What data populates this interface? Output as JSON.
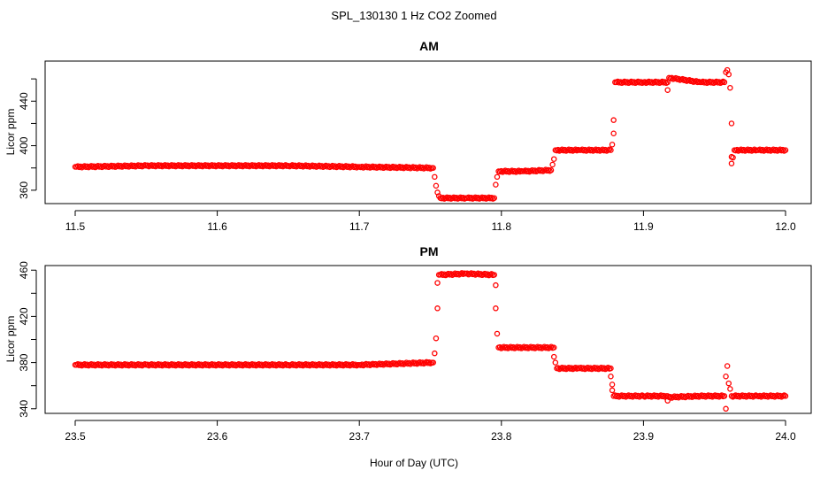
{
  "figure_title": "SPL_130130  1 Hz CO2 Zoomed",
  "xlabel": "Hour of Day (UTC)",
  "chart_data": [
    {
      "type": "scatter",
      "title": "AM",
      "xlabel": "",
      "ylabel": "Licor ppm",
      "xlim": [
        11.5,
        12.0
      ],
      "ylim": [
        348,
        476
      ],
      "xticks": [
        11.5,
        11.6,
        11.7,
        11.8,
        11.9,
        12.0
      ],
      "xtick_labels": [
        "11.5",
        "11.6",
        "11.7",
        "11.8",
        "11.9",
        "12.0"
      ],
      "yticks": [
        360,
        400,
        440
      ],
      "ytick_labels": [
        "360",
        "400",
        "440"
      ],
      "marker_color": "#ff0000",
      "grid": false,
      "series": [
        {
          "points": [
            [
              11.5,
              381
            ],
            [
              11.55,
              382
            ],
            [
              11.6,
              382
            ],
            [
              11.65,
              382
            ],
            [
              11.7,
              381
            ],
            [
              11.752,
              380
            ],
            [
              11.753,
              372
            ],
            [
              11.754,
              364
            ],
            [
              11.755,
              358
            ],
            [
              11.757,
              353
            ],
            [
              11.775,
              353
            ],
            [
              11.795,
              353
            ],
            [
              11.796,
              365
            ],
            [
              11.797,
              372
            ],
            [
              11.798,
              377
            ],
            [
              11.815,
              377
            ],
            [
              11.835,
              378
            ],
            [
              11.836,
              383
            ],
            [
              11.837,
              388
            ],
            [
              11.838,
              396
            ],
            [
              11.855,
              396
            ],
            [
              11.877,
              396
            ],
            [
              11.878,
              401
            ],
            [
              11.879,
              411
            ],
            [
              11.879,
              423
            ],
            [
              11.88,
              457
            ],
            [
              11.9,
              457
            ],
            [
              11.917,
              457
            ],
            [
              11.917,
              450
            ],
            [
              11.918,
              461
            ],
            [
              11.94,
              457
            ],
            [
              11.957,
              457
            ],
            [
              11.958,
              466
            ],
            [
              11.959,
              468
            ],
            [
              11.96,
              464
            ],
            [
              11.961,
              452
            ],
            [
              11.962,
              420
            ],
            [
              11.962,
              390
            ],
            [
              11.962,
              384
            ],
            [
              11.964,
              396
            ],
            [
              11.98,
              396
            ],
            [
              12.0,
              396
            ]
          ]
        }
      ]
    },
    {
      "type": "scatter",
      "title": "PM",
      "xlabel": "Hour of Day (UTC)",
      "ylabel": "Licor ppm",
      "xlim": [
        23.5,
        24.0
      ],
      "ylim": [
        336,
        464
      ],
      "xticks": [
        23.5,
        23.6,
        23.7,
        23.8,
        23.9,
        24.0
      ],
      "xtick_labels": [
        "23.5",
        "23.6",
        "23.7",
        "23.8",
        "23.9",
        "24.0"
      ],
      "yticks": [
        340,
        380,
        420,
        460
      ],
      "ytick_labels": [
        "340",
        "380",
        "420",
        "460"
      ],
      "marker_color": "#ff0000",
      "grid": false,
      "series": [
        {
          "points": [
            [
              23.5,
              378
            ],
            [
              23.55,
              378
            ],
            [
              23.6,
              378
            ],
            [
              23.65,
              378
            ],
            [
              23.7,
              378
            ],
            [
              23.752,
              380
            ],
            [
              23.753,
              388
            ],
            [
              23.754,
              401
            ],
            [
              23.755,
              427
            ],
            [
              23.755,
              449
            ],
            [
              23.756,
              456
            ],
            [
              23.775,
              457
            ],
            [
              23.795,
              456
            ],
            [
              23.796,
              447
            ],
            [
              23.796,
              427
            ],
            [
              23.797,
              405
            ],
            [
              23.798,
              393
            ],
            [
              23.815,
              393
            ],
            [
              23.837,
              393
            ],
            [
              23.837,
              385
            ],
            [
              23.838,
              380
            ],
            [
              23.839,
              375
            ],
            [
              23.855,
              375
            ],
            [
              23.877,
              375
            ],
            [
              23.877,
              368
            ],
            [
              23.878,
              361
            ],
            [
              23.878,
              356
            ],
            [
              23.879,
              351
            ],
            [
              23.9,
              351
            ],
            [
              23.917,
              351
            ],
            [
              23.917,
              347
            ],
            [
              23.918,
              350
            ],
            [
              23.94,
              351
            ],
            [
              23.957,
              351
            ],
            [
              23.958,
              340
            ],
            [
              23.958,
              368
            ],
            [
              23.959,
              377
            ],
            [
              23.96,
              362
            ],
            [
              23.962,
              351
            ],
            [
              23.98,
              351
            ],
            [
              24.0,
              351
            ]
          ]
        }
      ]
    }
  ]
}
